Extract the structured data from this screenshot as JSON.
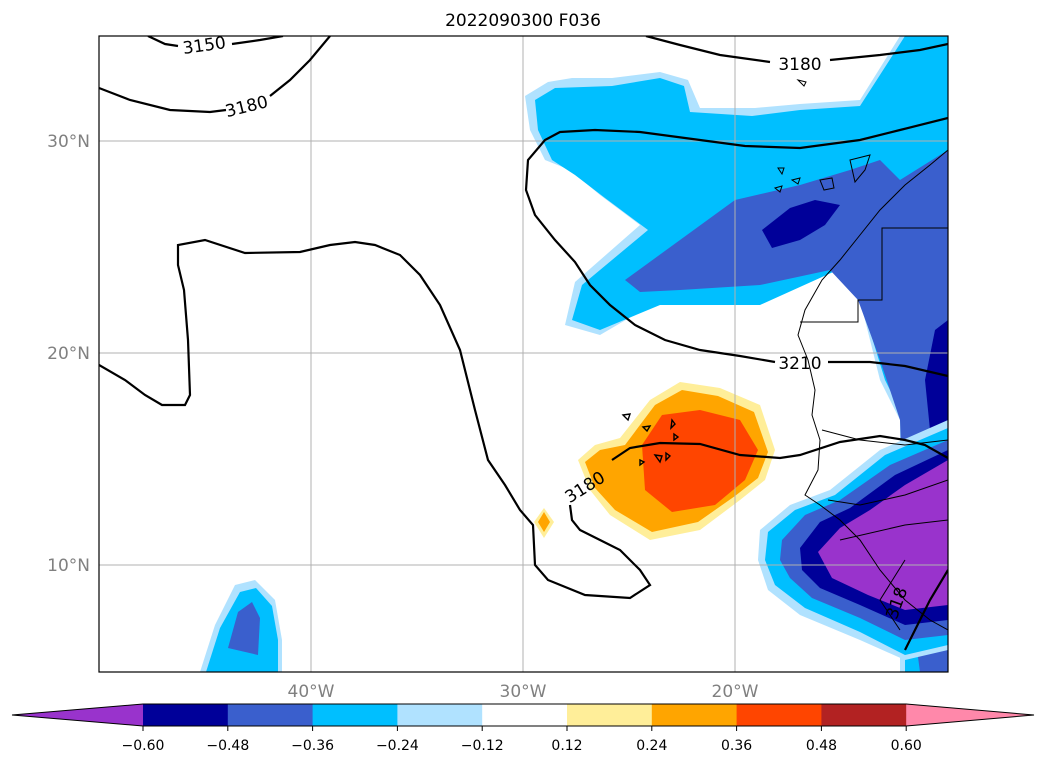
{
  "title": "2022090300 F036",
  "lat_labels": [
    "30°N",
    "20°N",
    "10°N"
  ],
  "lon_labels": [
    "40°W",
    "30°W",
    "20°W"
  ],
  "contour_labels": [
    "3150",
    "3180",
    "3180",
    "3180",
    "3210",
    "318"
  ],
  "colorbar": {
    "tick_labels": [
      "−0.60",
      "−0.48",
      "−0.36",
      "−0.24",
      "−0.12",
      "0.12",
      "0.24",
      "0.36",
      "0.48",
      "0.60"
    ],
    "colors": [
      "#9933cc",
      "#000099",
      "#3a5fcd",
      "#00bfff",
      "#b0e2ff",
      "#ffffff",
      "#ffee99",
      "#ffa500",
      "#ff4500",
      "#b22222",
      "#ff88aa"
    ]
  },
  "colors": {
    "neg_extreme": "#9933cc",
    "neg_strong": "#000099",
    "neg_mid": "#3a5fcd",
    "neg_weak": "#00bfff",
    "neg_light": "#b0e2ff",
    "pos_light": "#ffee99",
    "pos_weak": "#ffa500",
    "pos_mid": "#ff4500"
  }
}
